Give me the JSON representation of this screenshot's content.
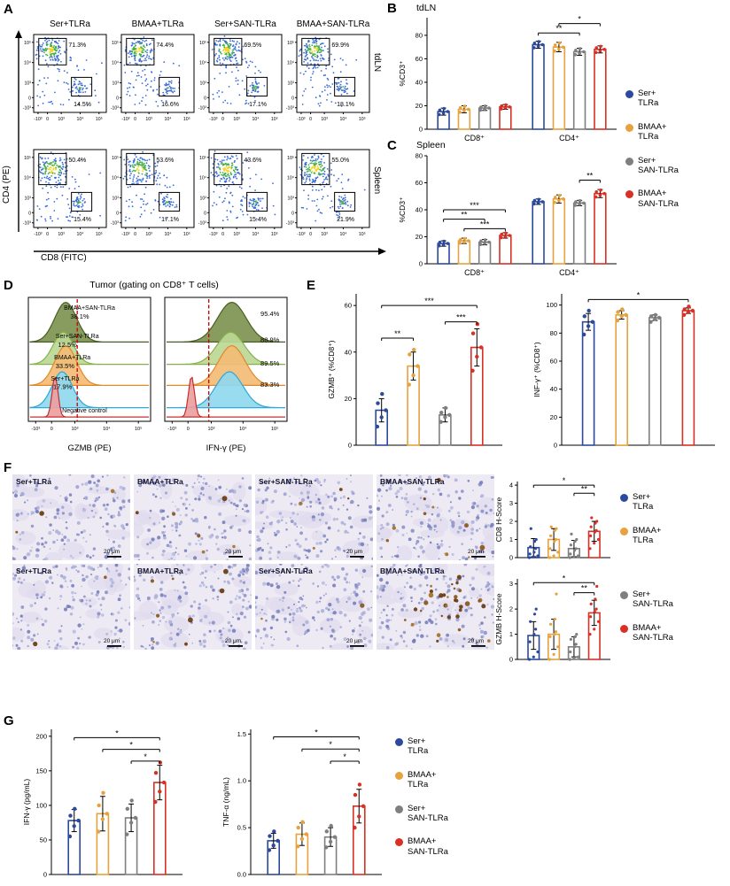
{
  "panel_letters": {
    "a": "A",
    "b": "B",
    "c": "C",
    "d": "D",
    "e": "E",
    "f": "F",
    "g": "G"
  },
  "groups": [
    {
      "name": "Ser+TLRa",
      "line1": "Ser+",
      "line2": "TLRa",
      "color": "#2b4a9e"
    },
    {
      "name": "BMAA+TLRa",
      "line1": "BMAA+",
      "line2": "TLRa",
      "color": "#e6a23c"
    },
    {
      "name": "Ser+SAN-TLRa",
      "line1": "Ser+",
      "line2": "SAN-TLRa",
      "color": "#7f7f7f"
    },
    {
      "name": "BMAA+SAN-TLRa",
      "line1": "BMAA+",
      "line2": "SAN-TLRa",
      "color": "#d93025"
    }
  ],
  "panelA": {
    "col_headers": [
      "Ser+TLRa",
      "BMAA+TLRa",
      "Ser+SAN-TLRa",
      "BMAA+SAN-TLRa"
    ],
    "row_labels": [
      "tdLN",
      "Spleen"
    ],
    "y_axis_label": "CD4 (PE)",
    "x_axis_label": "CD8 (FITC)",
    "tick_labels": [
      "-10³",
      "0",
      "10³",
      "10⁴",
      "10⁵"
    ],
    "plots": [
      {
        "cd4_pct": "71.3%",
        "cd8_pct": "14.5%"
      },
      {
        "cd4_pct": "74.4%",
        "cd8_pct": "16.6%"
      },
      {
        "cd4_pct": "69.5%",
        "cd8_pct": "17.1%"
      },
      {
        "cd4_pct": "69.9%",
        "cd8_pct": "18.1%"
      },
      {
        "cd4_pct": "50.4%",
        "cd8_pct": "15.4%"
      },
      {
        "cd4_pct": "53.6%",
        "cd8_pct": "17.1%"
      },
      {
        "cd4_pct": "43.6%",
        "cd8_pct": "15.4%"
      },
      {
        "cd4_pct": "55.0%",
        "cd8_pct": "21.9%"
      }
    ]
  },
  "panelD": {
    "title": "Tumor (gating on CD8⁺ T cells)",
    "tick_labels": [
      "-10³",
      "0",
      "10³",
      "10⁴",
      "10⁵"
    ],
    "histograms": [
      {
        "xlabel": "GZMB (PE)",
        "threshold": 0.4,
        "series": [
          {
            "name": "BMAA+SAN-TLRa",
            "pct": "38.1%",
            "stroke": "#4a5f22",
            "fill": "#7d9450",
            "center": 0.3,
            "width": 0.13,
            "lx": 0.5,
            "ly": 0.1,
            "px": 0.42,
            "py": 0.17
          },
          {
            "name": "Ser+SAN-TLRa",
            "pct": "12.5%",
            "stroke": "#86b04a",
            "fill": "#bcd795",
            "center": 0.28,
            "width": 0.12,
            "lx": 0.4,
            "ly": 0.33,
            "px": 0.32,
            "py": 0.4
          },
          {
            "name": "BMAA+TLRa",
            "pct": "33.5%",
            "stroke": "#e0892a",
            "fill": "#f3bc76",
            "center": 0.3,
            "width": 0.13,
            "lx": 0.36,
            "ly": 0.5,
            "px": 0.3,
            "py": 0.57
          },
          {
            "name": "Ser+TLRa",
            "pct": "17.9%",
            "stroke": "#2ea8d6",
            "fill": "#90d8ee",
            "center": 0.27,
            "width": 0.12,
            "lx": 0.3,
            "ly": 0.67,
            "px": 0.28,
            "py": 0.74
          },
          {
            "name": "Negative control",
            "pct": "",
            "stroke": "#c23030",
            "fill": "#eda0a0",
            "center": 0.21,
            "width": 0.035,
            "lx": 0.46,
            "ly": 0.93
          }
        ]
      },
      {
        "xlabel": "IFN-γ (PE)",
        "threshold": 0.36,
        "series": [
          {
            "pct": "95.4%",
            "stroke": "#4a5f22",
            "fill": "#7d9450",
            "center": 0.55,
            "width": 0.17,
            "px": 0.86,
            "py": 0.15
          },
          {
            "pct": "88.9%",
            "stroke": "#86b04a",
            "fill": "#bcd795",
            "center": 0.54,
            "width": 0.16,
            "px": 0.86,
            "py": 0.36
          },
          {
            "pct": "89.5%",
            "stroke": "#e0892a",
            "fill": "#f3bc76",
            "center": 0.55,
            "width": 0.16,
            "px": 0.86,
            "py": 0.55
          },
          {
            "pct": "83.3%",
            "stroke": "#2ea8d6",
            "fill": "#90d8ee",
            "center": 0.53,
            "width": 0.16,
            "px": 0.86,
            "py": 0.72
          },
          {
            "stroke": "#c23030",
            "fill": "#eda0a0",
            "center": 0.21,
            "width": 0.035
          }
        ]
      }
    ]
  },
  "panelF": {
    "scale_bar": "20 μm",
    "images": [
      {
        "label": "Ser+TLRa",
        "brown": 3,
        "cluster": false
      },
      {
        "label": "BMAA+TLRa",
        "brown": 6,
        "cluster": false
      },
      {
        "label": "Ser+SAN-TLRa",
        "brown": 4,
        "cluster": false
      },
      {
        "label": "BMAA+SAN-TLRa",
        "brown": 12,
        "cluster": false
      },
      {
        "label": "Ser+TLRa",
        "brown": 2,
        "cluster": false
      },
      {
        "label": "BMAA+TLRa",
        "brown": 8,
        "cluster": false
      },
      {
        "label": "Ser+SAN-TLRa",
        "brown": 3,
        "cluster": false
      },
      {
        "label": "BMAA+SAN-TLRa",
        "brown": 34,
        "cluster": true
      }
    ]
  },
  "chart_data": [
    {
      "id": "B",
      "type": "bar",
      "title": "tdLN",
      "ylabel": "%CD3⁺",
      "ylim": [
        0,
        95
      ],
      "yticks": [
        "0",
        "20",
        "40",
        "60",
        "80"
      ],
      "clusters": [
        {
          "label": "CD8⁺",
          "values": [
            15,
            17,
            18,
            19
          ],
          "errors": [
            3,
            3,
            2,
            2
          ]
        },
        {
          "label": "CD4⁺",
          "values": [
            72,
            70,
            66,
            68
          ],
          "errors": [
            3,
            4,
            3,
            3
          ]
        }
      ],
      "sig": [
        {
          "cluster": 1,
          "from": 0,
          "to": 2,
          "label": "**",
          "y": 82
        },
        {
          "cluster": 1,
          "from": 1,
          "to": 3,
          "label": "*",
          "y": 90
        }
      ]
    },
    {
      "id": "C",
      "type": "bar",
      "title": "Spleen",
      "ylabel": "%CD3⁺",
      "ylim": [
        0,
        80
      ],
      "yticks": [
        "0",
        "20",
        "40",
        "60",
        "80"
      ],
      "clusters": [
        {
          "label": "CD8⁺",
          "values": [
            15,
            17,
            16,
            21
          ],
          "errors": [
            2,
            2,
            2,
            2
          ]
        },
        {
          "label": "CD4⁺",
          "values": [
            46,
            48,
            45,
            52
          ],
          "errors": [
            2,
            3,
            2,
            3
          ]
        }
      ],
      "sig": [
        {
          "cluster": 0,
          "from": 0,
          "to": 3,
          "label": "***",
          "y": 40
        },
        {
          "cluster": 0,
          "from": 0,
          "to": 2,
          "label": "**",
          "y": 33
        },
        {
          "cluster": 0,
          "from": 1,
          "to": 3,
          "label": "***",
          "y": 26
        },
        {
          "cluster": 1,
          "from": 2,
          "to": 3,
          "label": "**",
          "y": 62
        }
      ]
    },
    {
      "id": "E1",
      "type": "bar",
      "title": "",
      "ylabel": "GZMB⁺ (%CD8⁺)",
      "ylim": [
        0,
        65
      ],
      "yticks": [
        "0",
        "20",
        "40",
        "60"
      ],
      "clusters": [
        {
          "label": "",
          "values": [
            15,
            34,
            13,
            42
          ],
          "errors": [
            5,
            6,
            3,
            8
          ],
          "points": [
            [
              8,
              12,
              15,
              18,
              22
            ],
            [
              26,
              30,
              34,
              39,
              41
            ],
            [
              10,
              12,
              13,
              14,
              16
            ],
            [
              32,
              38,
              42,
              48,
              52
            ]
          ]
        }
      ],
      "sig": [
        {
          "cluster": 0,
          "from": 0,
          "to": 3,
          "label": "***",
          "y": 60
        },
        {
          "cluster": 0,
          "from": 2,
          "to": 3,
          "label": "***",
          "y": 53
        },
        {
          "cluster": 0,
          "from": 0,
          "to": 1,
          "label": "**",
          "y": 46
        }
      ]
    },
    {
      "id": "E2",
      "type": "bar",
      "title": "",
      "ylabel": "INF-γ⁺ (%CD8⁺)",
      "ylim": [
        0,
        108
      ],
      "yticks": [
        "0",
        "20",
        "40",
        "60",
        "80",
        "100"
      ],
      "clusters": [
        {
          "label": "",
          "values": [
            88,
            93,
            91,
            96
          ],
          "errors": [
            6,
            3,
            2,
            2
          ],
          "points": [
            [
              79,
              85,
              88,
              92,
              96
            ],
            [
              89,
              92,
              93,
              95,
              97
            ],
            [
              88,
              90,
              91,
              92,
              93
            ],
            [
              93,
              95,
              96,
              97,
              99
            ]
          ]
        }
      ],
      "sig": [
        {
          "cluster": 0,
          "from": 0,
          "to": 3,
          "label": "*",
          "y": 104
        }
      ]
    },
    {
      "id": "F1",
      "type": "bar",
      "title": "",
      "ylabel": "CD8 H-Score",
      "ylim": [
        0,
        4.2
      ],
      "yticks": [
        "0",
        "1",
        "2",
        "3",
        "4"
      ],
      "clusters": [
        {
          "label": "",
          "values": [
            0.55,
            1.0,
            0.5,
            1.45
          ],
          "errors": [
            0.5,
            0.6,
            0.45,
            0.55
          ],
          "points": [
            [
              0,
              0.05,
              0.1,
              0.2,
              0.3,
              0.5,
              0.6,
              0.9,
              1.0,
              1.6
            ],
            [
              0,
              0.1,
              0.3,
              0.5,
              0.9,
              1.0,
              1.2,
              1.5,
              1.6,
              1.7
            ],
            [
              0,
              0.05,
              0.1,
              0.2,
              0.4,
              0.5,
              0.7,
              0.9,
              1.0,
              1.3
            ],
            [
              0.5,
              0.8,
              1.0,
              1.2,
              1.4,
              1.5,
              1.7,
              1.9,
              2.0,
              2.2
            ]
          ]
        }
      ],
      "sig": [
        {
          "cluster": 0,
          "from": 0,
          "to": 3,
          "label": "*",
          "y": 4.0
        },
        {
          "cluster": 0,
          "from": 2,
          "to": 3,
          "label": "**",
          "y": 3.55
        }
      ]
    },
    {
      "id": "F2",
      "type": "bar",
      "title": "",
      "ylabel": "GZMB H-Score",
      "ylim": [
        0,
        3.2
      ],
      "yticks": [
        "0",
        "1",
        "2",
        "3"
      ],
      "clusters": [
        {
          "label": "",
          "values": [
            0.95,
            1.0,
            0.5,
            1.85
          ],
          "errors": [
            0.55,
            0.6,
            0.4,
            0.5
          ],
          "points": [
            [
              0,
              0.1,
              0.3,
              0.7,
              1.0,
              1.2,
              1.5,
              1.8,
              2.0
            ],
            [
              0,
              0.2,
              0.5,
              0.9,
              1.0,
              1.1,
              1.4,
              1.6,
              2.6
            ],
            [
              0,
              0.05,
              0.1,
              0.3,
              0.5,
              0.6,
              0.8,
              0.9,
              1.0
            ],
            [
              1.0,
              1.2,
              1.5,
              1.7,
              1.9,
              2.0,
              2.2,
              2.4,
              2.9
            ]
          ]
        }
      ],
      "sig": [
        {
          "cluster": 0,
          "from": 0,
          "to": 3,
          "label": "*",
          "y": 3.05
        },
        {
          "cluster": 0,
          "from": 2,
          "to": 3,
          "label": "**",
          "y": 2.65
        }
      ]
    },
    {
      "id": "G1",
      "type": "bar",
      "title": "",
      "ylabel": "IFN-γ (pg/mL)",
      "ylim": [
        0,
        210
      ],
      "yticks": [
        "0",
        "50",
        "100",
        "150",
        "200"
      ],
      "clusters": [
        {
          "label": "",
          "values": [
            78,
            88,
            82,
            133
          ],
          "errors": [
            16,
            25,
            20,
            25
          ],
          "points": [
            [
              55,
              70,
              78,
              85,
              95
            ],
            [
              62,
              80,
              88,
              100,
              118
            ],
            [
              58,
              75,
              82,
              95,
              107
            ],
            [
              105,
              120,
              133,
              147,
              162
            ]
          ]
        }
      ],
      "sig": [
        {
          "cluster": 0,
          "from": 0,
          "to": 3,
          "label": "*",
          "y": 198
        },
        {
          "cluster": 0,
          "from": 1,
          "to": 3,
          "label": "*",
          "y": 181
        },
        {
          "cluster": 0,
          "from": 2,
          "to": 3,
          "label": "*",
          "y": 164
        }
      ]
    },
    {
      "id": "G2",
      "type": "bar",
      "title": "",
      "ylabel": "TNF-α (ng/mL)",
      "ylim": [
        0,
        1.55
      ],
      "yticks": [
        "0.0",
        "0.5",
        "1.0",
        "1.5"
      ],
      "clusters": [
        {
          "label": "",
          "values": [
            0.36,
            0.43,
            0.4,
            0.73
          ],
          "errors": [
            0.08,
            0.12,
            0.1,
            0.18
          ],
          "points": [
            [
              0.26,
              0.31,
              0.36,
              0.41,
              0.46
            ],
            [
              0.3,
              0.38,
              0.43,
              0.5,
              0.56
            ],
            [
              0.29,
              0.35,
              0.4,
              0.46,
              0.52
            ],
            [
              0.5,
              0.62,
              0.73,
              0.85,
              0.96
            ]
          ]
        }
      ],
      "sig": [
        {
          "cluster": 0,
          "from": 0,
          "to": 3,
          "label": "*",
          "y": 1.47
        },
        {
          "cluster": 0,
          "from": 1,
          "to": 3,
          "label": "*",
          "y": 1.34
        },
        {
          "cluster": 0,
          "from": 2,
          "to": 3,
          "label": "*",
          "y": 1.21
        }
      ]
    }
  ]
}
